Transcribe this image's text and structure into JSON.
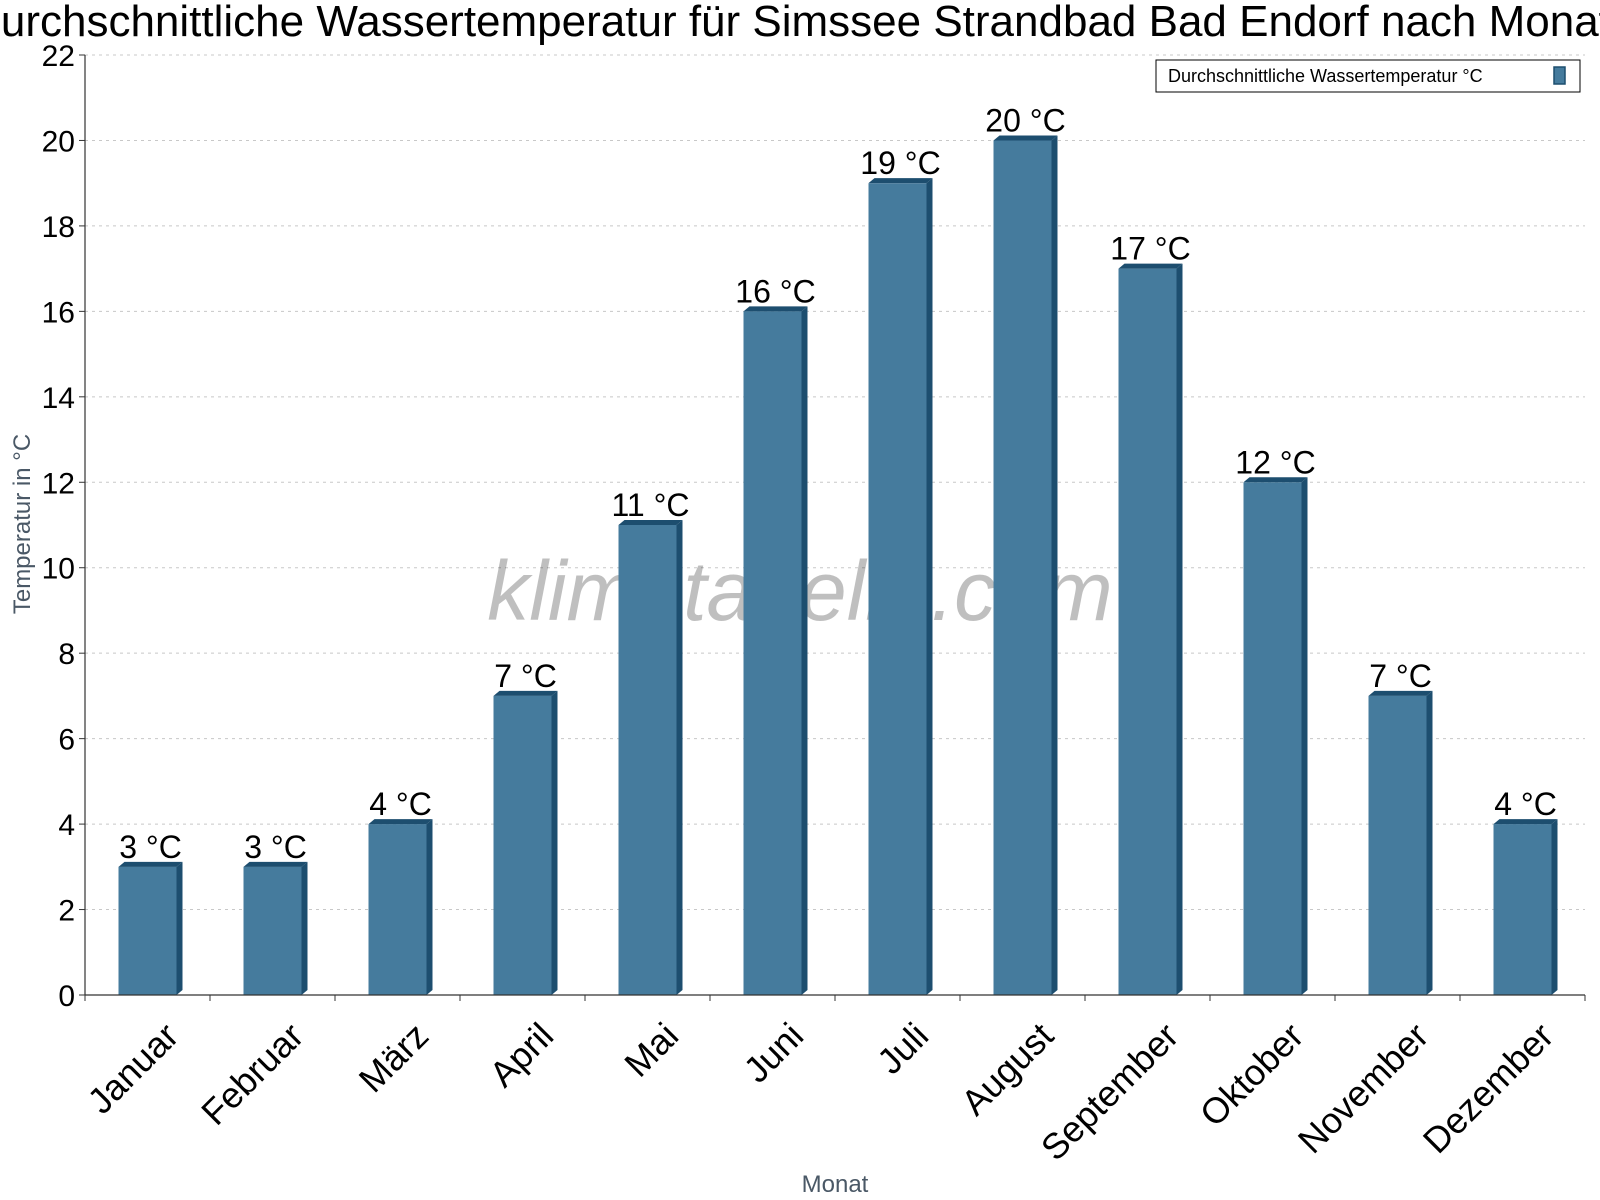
{
  "chart_data": {
    "type": "bar",
    "title": "Durchschnittliche Wassertemperatur für Simssee Strandbad Bad Endorf nach Monat",
    "xlabel": "Monat",
    "ylabel": "Temperatur in °C",
    "ylim": [
      0,
      22
    ],
    "yticks": [
      0,
      2,
      4,
      6,
      8,
      10,
      12,
      14,
      16,
      18,
      20,
      22
    ],
    "grid": true,
    "legend_position": "top-right",
    "categories": [
      "Januar",
      "Februar",
      "März",
      "April",
      "Mai",
      "Juni",
      "Juli",
      "August",
      "September",
      "Oktober",
      "November",
      "Dezember"
    ],
    "series": [
      {
        "name": "Durchschnittliche Wassertemperatur °C",
        "values": [
          3,
          3,
          4,
          7,
          11,
          16,
          19,
          20,
          17,
          12,
          7,
          4
        ],
        "data_labels": [
          "3 °C",
          "3 °C",
          "4 °C",
          "7 °C",
          "11 °C",
          "16 °C",
          "19 °C",
          "20 °C",
          "17 °C",
          "12 °C",
          "7 °C",
          "4 °C"
        ],
        "color": "#457b9d"
      }
    ]
  },
  "watermark": "klimatabelle.com",
  "colors": {
    "bar_front": "#457b9d",
    "bar_side": "#1d4e6f",
    "bar_top": "#1d4e6f",
    "grid": "#c8c8c8",
    "axis": "#333333"
  }
}
